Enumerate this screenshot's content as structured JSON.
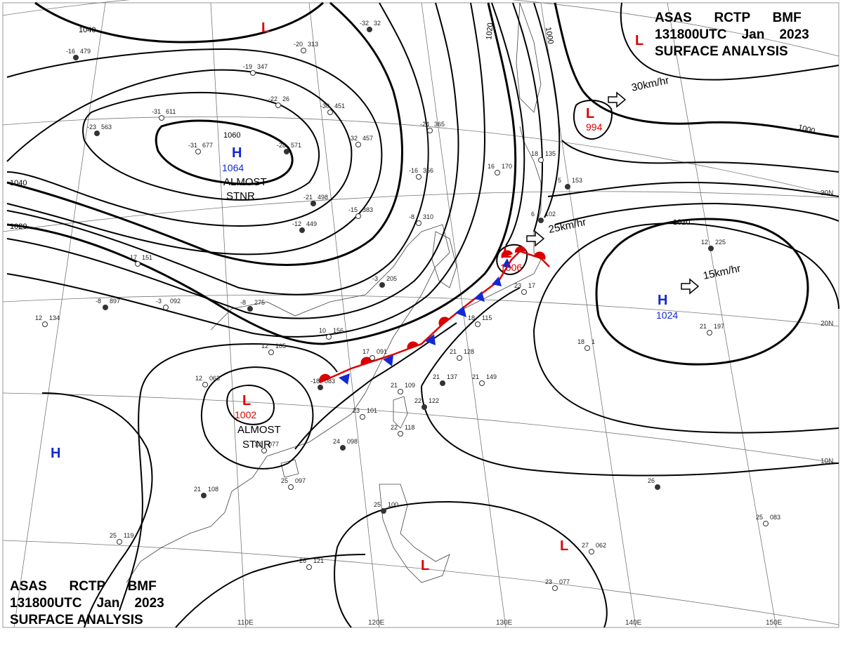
{
  "title": {
    "agency": "ASAS",
    "station": "RCTP",
    "office": "BMF",
    "time": "131800UTC",
    "month": "Jan",
    "year": "2023",
    "product": "SURFACE ANALYSIS"
  },
  "colors": {
    "high": "#1428d2",
    "low": "#dc0000",
    "warm_front": "#dc0000",
    "cold_front": "#1428d2"
  },
  "isobar_labels": [
    "1040",
    "1060",
    "1040",
    "1020",
    "1020",
    "1000",
    "1000",
    "1020"
  ],
  "grid_labels": {
    "longitudes": [
      "110E",
      "120E",
      "130E",
      "140E",
      "150E"
    ],
    "latitudes": [
      "30N",
      "20N",
      "10N"
    ]
  },
  "pressure_systems": [
    {
      "type": "H",
      "value": "1064",
      "note_lines": [
        "ALMOST",
        "STNR"
      ]
    },
    {
      "type": "L",
      "value": "1002",
      "note_lines": [
        "ALMOST",
        "STNR"
      ]
    },
    {
      "type": "L",
      "value": "994"
    },
    {
      "type": "L",
      "value": "1006"
    },
    {
      "type": "H",
      "value": "1024"
    },
    {
      "type": "L",
      "value": ""
    },
    {
      "type": "L",
      "value": ""
    },
    {
      "type": "L",
      "value": ""
    },
    {
      "type": "H",
      "value": ""
    }
  ],
  "motion_labels": [
    "30km/hr",
    "25km/hr",
    "15km/hr"
  ],
  "station_obs": [
    {
      "t": "-16",
      "p": "479"
    },
    {
      "t": "-19",
      "p": "347"
    },
    {
      "t": "-20",
      "p": "313"
    },
    {
      "t": "-32",
      "p": "32"
    },
    {
      "t": "-22",
      "p": "26"
    },
    {
      "t": "-31",
      "p": "611"
    },
    {
      "t": "-23",
      "p": "563"
    },
    {
      "t": "-31",
      "p": "677"
    },
    {
      "t": "-30",
      "p": "451"
    },
    {
      "t": "-28",
      "p": "571"
    },
    {
      "t": "-24",
      "p": "365"
    },
    {
      "t": "-32",
      "p": "457"
    },
    {
      "t": "-21",
      "p": "498"
    },
    {
      "t": "-16",
      "p": "356"
    },
    {
      "t": "-15",
      "p": "383"
    },
    {
      "t": "-12",
      "p": "449"
    },
    {
      "t": "-17",
      "p": "151"
    },
    {
      "t": "-8",
      "p": "310"
    },
    {
      "t": "-8",
      "p": "897"
    },
    {
      "t": "-3",
      "p": "092"
    },
    {
      "t": "12",
      "p": "134"
    },
    {
      "t": "-8",
      "p": "275"
    },
    {
      "t": "12",
      "p": "105"
    },
    {
      "t": "10",
      "p": "156"
    },
    {
      "t": "-3",
      "p": "205"
    },
    {
      "t": "12",
      "p": "063"
    },
    {
      "t": "17",
      "p": "091"
    },
    {
      "t": "-18",
      "p": "083"
    },
    {
      "t": "18",
      "p": "115"
    },
    {
      "t": "21",
      "p": "128"
    },
    {
      "t": "21",
      "p": "137"
    },
    {
      "t": "21",
      "p": "149"
    },
    {
      "t": "21",
      "p": "109"
    },
    {
      "t": "22",
      "p": "122"
    },
    {
      "t": "23",
      "p": "101"
    },
    {
      "t": "22",
      "p": "118"
    },
    {
      "t": "24",
      "p": "098"
    },
    {
      "t": "12",
      "p": "077"
    },
    {
      "t": "25",
      "p": "097"
    },
    {
      "t": "21",
      "p": "108"
    },
    {
      "t": "25",
      "p": "119"
    },
    {
      "t": "26",
      "p": "121"
    },
    {
      "t": "25",
      "p": "100"
    },
    {
      "t": "23",
      "p": "077"
    },
    {
      "t": "27",
      "p": "062"
    },
    {
      "t": "26",
      "p": ""
    },
    {
      "t": "25",
      "p": "083"
    },
    {
      "t": "18",
      "p": "135"
    },
    {
      "t": "5",
      "p": "153"
    },
    {
      "t": "18",
      "p": "1"
    },
    {
      "t": "21",
      "p": "197"
    },
    {
      "t": "12",
      "p": "225"
    },
    {
      "t": "23",
      "p": "17"
    },
    {
      "t": "16",
      "p": "170"
    },
    {
      "t": "6",
      "p": "102"
    }
  ]
}
